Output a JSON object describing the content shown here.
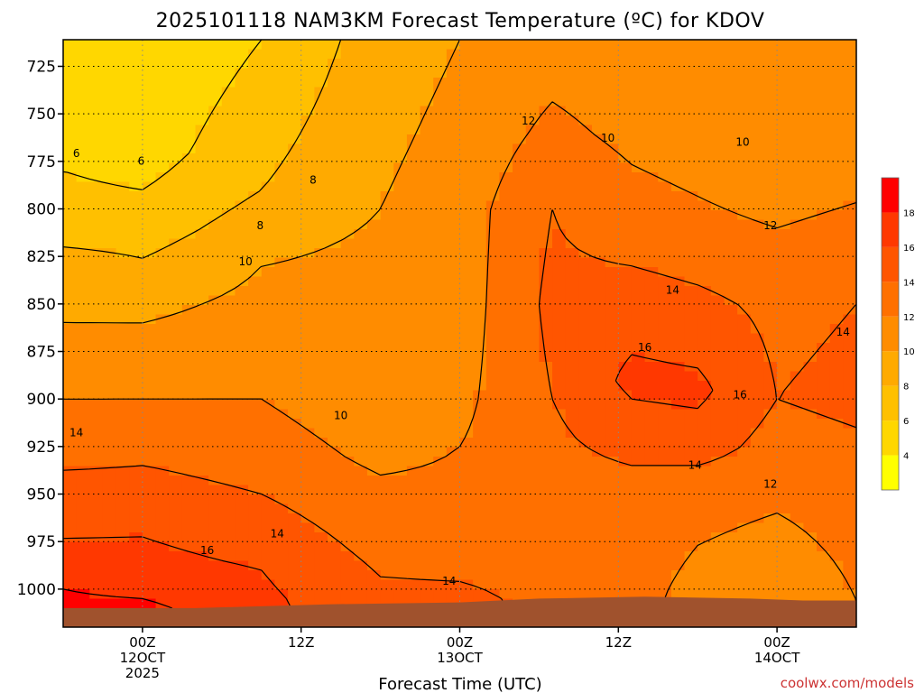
{
  "chart_data": {
    "type": "heatmap",
    "subtype": "time-pressure filled contour",
    "title": "2025101118 NAM3KM Forecast Temperature (ºC) for KDOV",
    "xlabel": "Forecast Time (UTC)",
    "ylabel": "",
    "credit": "coolwx.com/models",
    "x_ticks": [
      {
        "lines": [
          "00Z",
          "12OCT",
          "2025"
        ],
        "hour": 6
      },
      {
        "lines": [
          "12Z"
        ],
        "hour": 18
      },
      {
        "lines": [
          "00Z",
          "13OCT"
        ],
        "hour": 30
      },
      {
        "lines": [
          "12Z"
        ],
        "hour": 42
      },
      {
        "lines": [
          "00Z",
          "14OCT"
        ],
        "hour": 54
      }
    ],
    "xlim_hours": [
      0,
      60
    ],
    "y_ticks": [
      725,
      750,
      775,
      800,
      825,
      850,
      875,
      900,
      925,
      950,
      975,
      1000
    ],
    "ylim_hPa": [
      711,
      1020
    ],
    "y_inverted": true,
    "grid": true,
    "colorbar": {
      "ticks": [
        "4",
        "6",
        "8",
        "10",
        "12",
        "14",
        "16",
        "18"
      ],
      "levels": [
        2,
        4,
        6,
        8,
        10,
        12,
        14,
        16,
        18,
        20
      ],
      "colors": [
        "#ffff00",
        "#ffd700",
        "#ffc000",
        "#ffaa00",
        "#ff8c00",
        "#ff7000",
        "#ff5500",
        "#ff3800",
        "#ff0000"
      ]
    },
    "terrain_color": "#a0522d",
    "surface_pressure": [
      {
        "hour": 0,
        "hPa": 1010
      },
      {
        "hour": 10,
        "hPa": 1010
      },
      {
        "hour": 20,
        "hPa": 1008
      },
      {
        "hour": 30,
        "hPa": 1007
      },
      {
        "hour": 36,
        "hPa": 1005
      },
      {
        "hour": 44,
        "hPa": 1004
      },
      {
        "hour": 52,
        "hPa": 1005
      },
      {
        "hour": 56,
        "hPa": 1006
      },
      {
        "hour": 60,
        "hPa": 1006
      }
    ],
    "temperature_profiles": [
      {
        "hour": 0,
        "values": [
          {
            "hPa": 711,
            "t": 4
          },
          {
            "hPa": 760,
            "t": 4
          },
          {
            "hPa": 780,
            "t": 6
          },
          {
            "hPa": 810,
            "t": 7
          },
          {
            "hPa": 830,
            "t": 9
          },
          {
            "hPa": 860,
            "t": 10
          },
          {
            "hPa": 900,
            "t": 12
          },
          {
            "hPa": 925,
            "t": 13
          },
          {
            "hPa": 950,
            "t": 15
          },
          {
            "hPa": 985,
            "t": 16.5
          },
          {
            "hPa": 1000,
            "t": 18
          },
          {
            "hPa": 1010,
            "t": 18.5
          }
        ]
      },
      {
        "hour": 6,
        "values": [
          {
            "hPa": 711,
            "t": 4
          },
          {
            "hPa": 770,
            "t": 5
          },
          {
            "hPa": 810,
            "t": 7
          },
          {
            "hPa": 850,
            "t": 9.5
          },
          {
            "hPa": 880,
            "t": 11
          },
          {
            "hPa": 910,
            "t": 12.5
          },
          {
            "hPa": 935,
            "t": 14
          },
          {
            "hPa": 960,
            "t": 15.5
          },
          {
            "hPa": 985,
            "t": 16.5
          },
          {
            "hPa": 1000,
            "t": 17.5
          },
          {
            "hPa": 1010,
            "t": 18.5
          }
        ]
      },
      {
        "hour": 15,
        "values": [
          {
            "hPa": 711,
            "t": 6
          },
          {
            "hPa": 790,
            "t": 8
          },
          {
            "hPa": 830,
            "t": 10
          },
          {
            "hPa": 870,
            "t": 11
          },
          {
            "hPa": 900,
            "t": 12
          },
          {
            "hPa": 940,
            "t": 13.5
          },
          {
            "hPa": 970,
            "t": 15
          },
          {
            "hPa": 990,
            "t": 16
          },
          {
            "hPa": 1008,
            "t": 16.5
          }
        ]
      },
      {
        "hour": 24,
        "values": [
          {
            "hPa": 711,
            "t": 9
          },
          {
            "hPa": 800,
            "t": 10
          },
          {
            "hPa": 850,
            "t": 11
          },
          {
            "hPa": 900,
            "t": 10.5
          },
          {
            "hPa": 930,
            "t": 11.5
          },
          {
            "hPa": 950,
            "t": 12.5
          },
          {
            "hPa": 980,
            "t": 13.5
          },
          {
            "hPa": 1007,
            "t": 14.5
          }
        ]
      },
      {
        "hour": 30,
        "values": [
          {
            "hPa": 711,
            "t": 10
          },
          {
            "hPa": 800,
            "t": 11
          },
          {
            "hPa": 850,
            "t": 11
          },
          {
            "hPa": 900,
            "t": 11.5
          },
          {
            "hPa": 950,
            "t": 12.5
          },
          {
            "hPa": 985,
            "t": 13.5
          },
          {
            "hPa": 1007,
            "t": 14.5
          }
        ]
      },
      {
        "hour": 37,
        "values": [
          {
            "hPa": 711,
            "t": 11
          },
          {
            "hPa": 760,
            "t": 12.5
          },
          {
            "hPa": 800,
            "t": 14
          },
          {
            "hPa": 850,
            "t": 14.5
          },
          {
            "hPa": 900,
            "t": 14
          },
          {
            "hPa": 950,
            "t": 13
          },
          {
            "hPa": 1005,
            "t": 13.5
          }
        ]
      },
      {
        "hour": 43,
        "values": [
          {
            "hPa": 711,
            "t": 10.5
          },
          {
            "hPa": 760,
            "t": 11.5
          },
          {
            "hPa": 810,
            "t": 13
          },
          {
            "hPa": 850,
            "t": 15
          },
          {
            "hPa": 890,
            "t": 16.5
          },
          {
            "hPa": 920,
            "t": 15
          },
          {
            "hPa": 950,
            "t": 13
          },
          {
            "hPa": 1004,
            "t": 12.5
          }
        ]
      },
      {
        "hour": 48,
        "values": [
          {
            "hPa": 711,
            "t": 10
          },
          {
            "hPa": 760,
            "t": 11
          },
          {
            "hPa": 810,
            "t": 12.5
          },
          {
            "hPa": 850,
            "t": 14.5
          },
          {
            "hPa": 895,
            "t": 16.5
          },
          {
            "hPa": 925,
            "t": 15
          },
          {
            "hPa": 950,
            "t": 12.5
          },
          {
            "hPa": 1004,
            "t": 11.5
          }
        ]
      },
      {
        "hour": 54,
        "values": [
          {
            "hPa": 711,
            "t": 10
          },
          {
            "hPa": 770,
            "t": 10.5
          },
          {
            "hPa": 810,
            "t": 12
          },
          {
            "hPa": 850,
            "t": 13.5
          },
          {
            "hPa": 900,
            "t": 14
          },
          {
            "hPa": 930,
            "t": 13
          },
          {
            "hPa": 960,
            "t": 12
          },
          {
            "hPa": 1005,
            "t": 11
          }
        ]
      },
      {
        "hour": 60,
        "values": [
          {
            "hPa": 711,
            "t": 10.5
          },
          {
            "hPa": 770,
            "t": 11
          },
          {
            "hPa": 810,
            "t": 12.5
          },
          {
            "hPa": 850,
            "t": 14
          },
          {
            "hPa": 900,
            "t": 14.5
          },
          {
            "hPa": 930,
            "t": 13.5
          },
          {
            "hPa": 960,
            "t": 12.5
          },
          {
            "hPa": 1006,
            "t": 12
          }
        ]
      }
    ],
    "contour_labels": [
      {
        "text": "6",
        "hour": 1.0,
        "hPa": 771
      },
      {
        "text": "6",
        "hour": 5.9,
        "hPa": 775
      },
      {
        "text": "8",
        "hour": 14.9,
        "hPa": 809
      },
      {
        "text": "8",
        "hour": 18.9,
        "hPa": 785
      },
      {
        "text": "10",
        "hour": 13.8,
        "hPa": 828
      },
      {
        "text": "10",
        "hour": 21.0,
        "hPa": 909
      },
      {
        "text": "12",
        "hour": 35.2,
        "hPa": 754
      },
      {
        "text": "10",
        "hour": 41.2,
        "hPa": 763
      },
      {
        "text": "10",
        "hour": 51.4,
        "hPa": 765
      },
      {
        "text": "12",
        "hour": 53.5,
        "hPa": 809
      },
      {
        "text": "14",
        "hour": 46.1,
        "hPa": 843
      },
      {
        "text": "14",
        "hour": 59.0,
        "hPa": 865
      },
      {
        "text": "16",
        "hour": 44.0,
        "hPa": 873
      },
      {
        "text": "16",
        "hour": 51.2,
        "hPa": 898
      },
      {
        "text": "14",
        "hour": 47.8,
        "hPa": 935
      },
      {
        "text": "12",
        "hour": 53.5,
        "hPa": 945
      },
      {
        "text": "14",
        "hour": 1.0,
        "hPa": 918
      },
      {
        "text": "14",
        "hour": 16.2,
        "hPa": 971
      },
      {
        "text": "16",
        "hour": 10.9,
        "hPa": 980
      },
      {
        "text": "14",
        "hour": 29.2,
        "hPa": 996
      }
    ]
  }
}
